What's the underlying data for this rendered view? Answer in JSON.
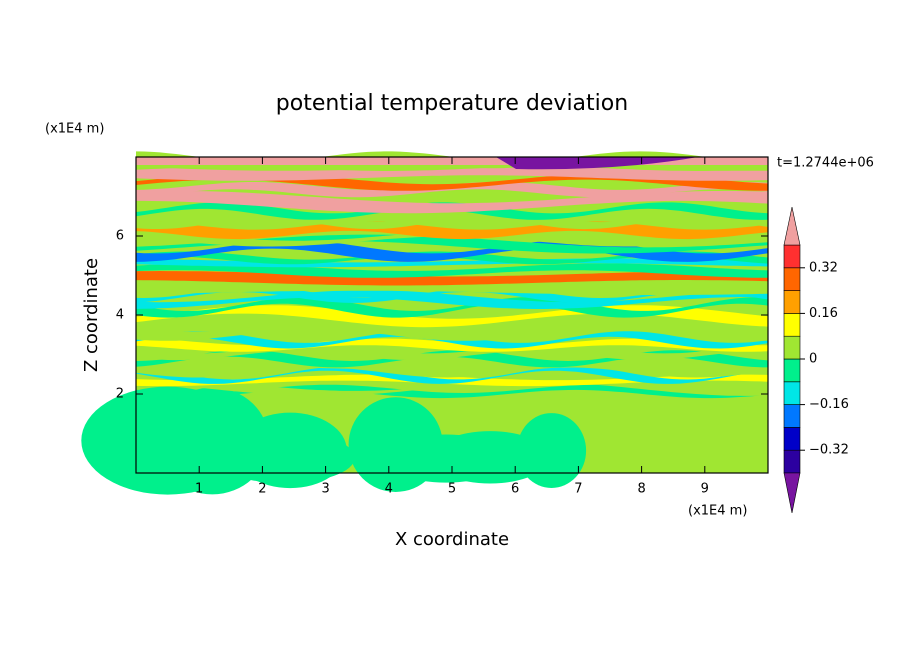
{
  "chart_data": {
    "type": "contour",
    "title": "potential temperature deviation",
    "time_label": "t=1.2744e+06",
    "xlabel": "X coordinate",
    "ylabel": "Z coordinate",
    "x_unit": "(x1E4 m)",
    "y_unit": "(x1E4 m)",
    "xlim": [
      0,
      10
    ],
    "xticks": [
      1,
      2,
      3,
      4,
      5,
      6,
      7,
      8,
      9
    ],
    "ylim": [
      0,
      8
    ],
    "yticks": [
      2,
      4,
      6
    ],
    "colorbar": {
      "lim": [
        -0.4,
        0.4
      ],
      "ticks": [
        {
          "value": 0.32,
          "label": "0.32"
        },
        {
          "value": 0.16,
          "label": "0.16"
        },
        0,
        {
          "value": -0.16,
          "label": "−0.16"
        },
        {
          "value": -0.32,
          "label": "−0.32"
        }
      ],
      "colors": [
        "#7814a0",
        "#2c00a0",
        "#0000c8",
        "#0078ff",
        "#00e6e6",
        "#00f08c",
        "#a0e632",
        "#ffff00",
        "#ffa000",
        "#ff6600",
        "#ff3030",
        "#f0a0a0"
      ]
    }
  }
}
